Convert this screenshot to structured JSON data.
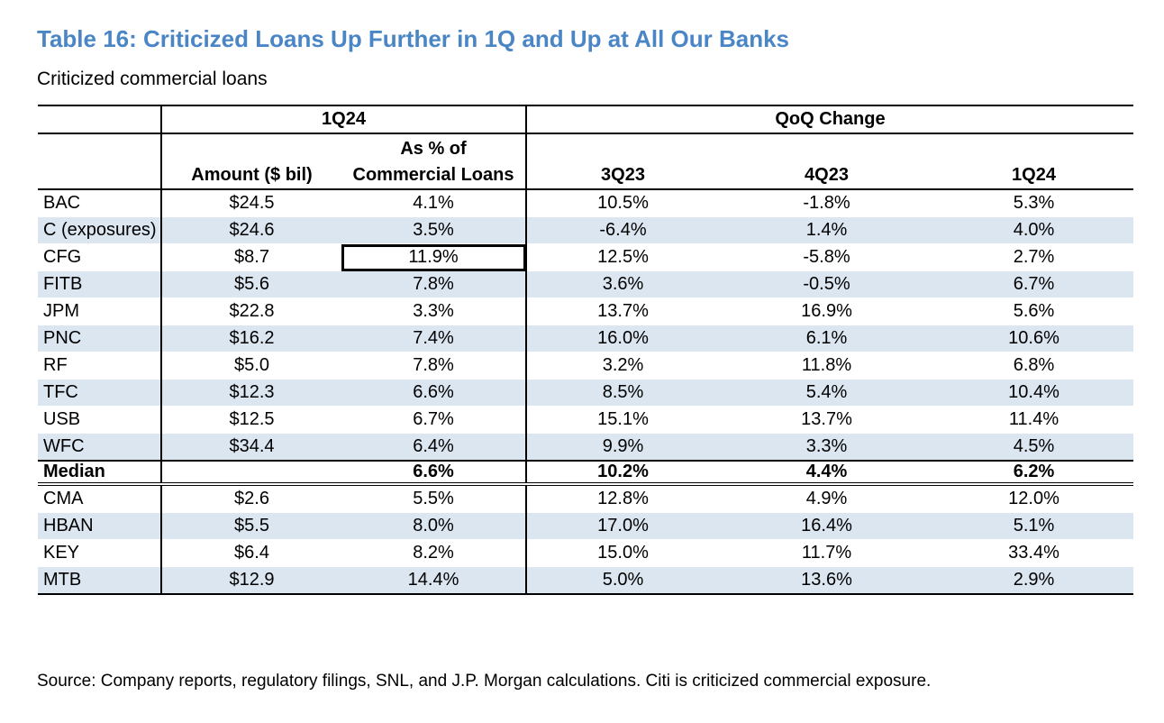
{
  "title": "Table 16: Criticized Loans Up Further in 1Q and Up at All Our Banks",
  "subtitle": "Criticized commercial loans",
  "header": {
    "group_1q24": "1Q24",
    "group_qoq": "QoQ Change",
    "amount": "Amount ($ bil)",
    "pct_line1": "As % of",
    "pct_line2": "Commercial Loans",
    "q3": "3Q23",
    "q4": "4Q23",
    "q1": "1Q24"
  },
  "rows": [
    {
      "bank": "BAC",
      "amount": "$24.5",
      "pct": "4.1%",
      "q3": "10.5%",
      "q4": "-1.8%",
      "q1": "5.3%"
    },
    {
      "bank": "C (exposures)",
      "amount": "$24.6",
      "pct": "3.5%",
      "q3": "-6.4%",
      "q4": "1.4%",
      "q1": "4.0%"
    },
    {
      "bank": "CFG",
      "amount": "$8.7",
      "pct": "11.9%",
      "q3": "12.5%",
      "q4": "-5.8%",
      "q1": "2.7%"
    },
    {
      "bank": "FITB",
      "amount": "$5.6",
      "pct": "7.8%",
      "q3": "3.6%",
      "q4": "-0.5%",
      "q1": "6.7%"
    },
    {
      "bank": "JPM",
      "amount": "$22.8",
      "pct": "3.3%",
      "q3": "13.7%",
      "q4": "16.9%",
      "q1": "5.6%"
    },
    {
      "bank": "PNC",
      "amount": "$16.2",
      "pct": "7.4%",
      "q3": "16.0%",
      "q4": "6.1%",
      "q1": "10.6%"
    },
    {
      "bank": "RF",
      "amount": "$5.0",
      "pct": "7.8%",
      "q3": "3.2%",
      "q4": "11.8%",
      "q1": "6.8%"
    },
    {
      "bank": "TFC",
      "amount": "$12.3",
      "pct": "6.6%",
      "q3": "8.5%",
      "q4": "5.4%",
      "q1": "10.4%"
    },
    {
      "bank": "USB",
      "amount": "$12.5",
      "pct": "6.7%",
      "q3": "15.1%",
      "q4": "13.7%",
      "q1": "11.4%"
    },
    {
      "bank": "WFC",
      "amount": "$34.4",
      "pct": "6.4%",
      "q3": "9.9%",
      "q4": "3.3%",
      "q1": "4.5%"
    }
  ],
  "median": {
    "label": "Median",
    "amount": "",
    "pct": "6.6%",
    "q3": "10.2%",
    "q4": "4.4%",
    "q1": "6.2%"
  },
  "rows2": [
    {
      "bank": "CMA",
      "amount": "$2.6",
      "pct": "5.5%",
      "q3": "12.8%",
      "q4": "4.9%",
      "q1": "12.0%"
    },
    {
      "bank": "HBAN",
      "amount": "$5.5",
      "pct": "8.0%",
      "q3": "17.0%",
      "q4": "16.4%",
      "q1": "5.1%"
    },
    {
      "bank": "KEY",
      "amount": "$6.4",
      "pct": "8.2%",
      "q3": "15.0%",
      "q4": "11.7%",
      "q1": "33.4%"
    },
    {
      "bank": "MTB",
      "amount": "$12.9",
      "pct": "14.4%",
      "q3": "5.0%",
      "q4": "13.6%",
      "q1": "2.9%"
    }
  ],
  "colors": {
    "title": "#4a86c5",
    "shade": "#dce6f1"
  },
  "source": "Source: Company reports, regulatory filings, SNL, and J.P. Morgan calculations. Citi is criticized commercial exposure."
}
